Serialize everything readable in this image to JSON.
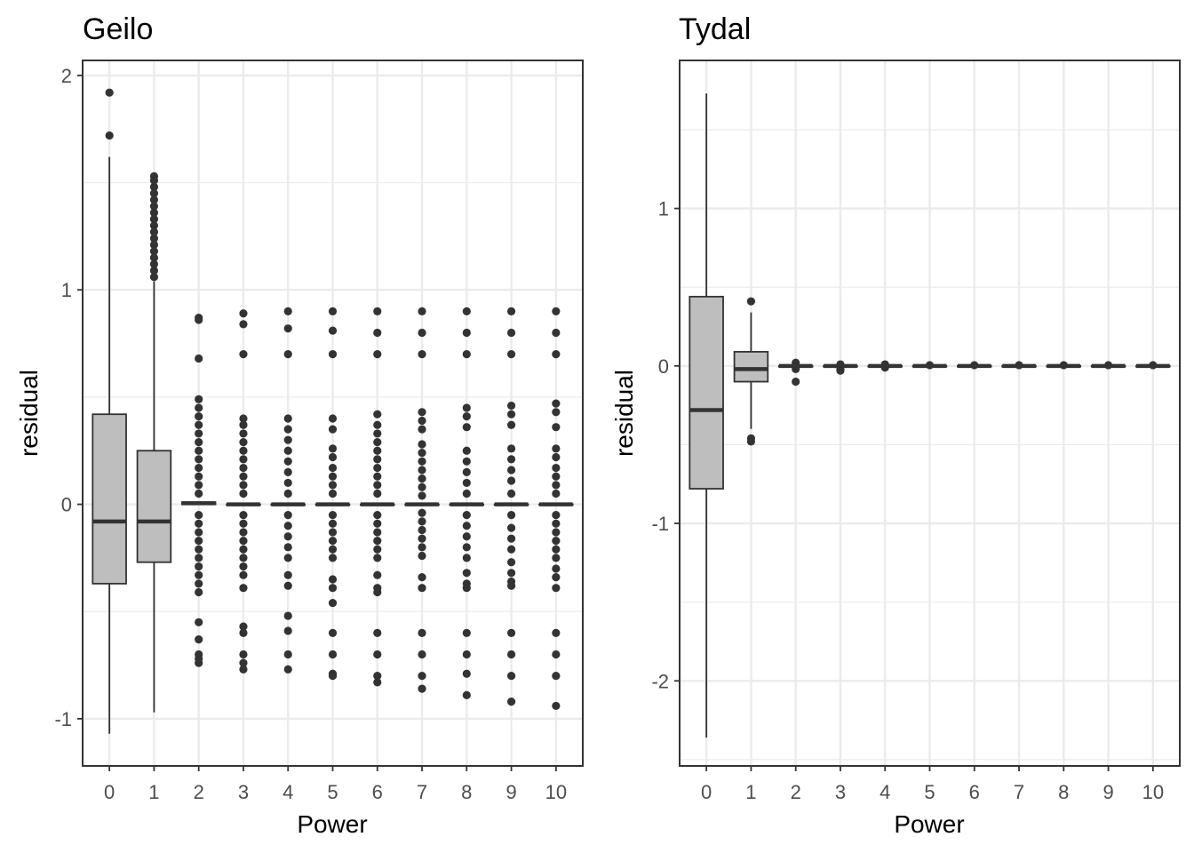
{
  "chart_data": [
    {
      "type": "boxplot",
      "title": "Geilo",
      "xlabel": "Power",
      "ylabel": "residual",
      "categories": [
        "0",
        "1",
        "2",
        "3",
        "4",
        "5",
        "6",
        "7",
        "8",
        "9",
        "10"
      ],
      "ylim": [
        -1.22,
        2.07
      ],
      "yticks": [
        -1,
        0,
        1,
        2
      ],
      "yticklabels": [
        "-1",
        "0",
        "1",
        "2"
      ],
      "grid": true,
      "boxes": [
        {
          "x": "0",
          "lower": -1.07,
          "q1": -0.37,
          "median": -0.08,
          "q3": 0.42,
          "upper": 1.62,
          "outliers": [
            1.72,
            1.92
          ]
        },
        {
          "x": "1",
          "lower": -0.97,
          "q1": -0.27,
          "median": -0.08,
          "q3": 0.25,
          "upper": 1.04,
          "outliers": [
            1.06,
            1.09,
            1.12,
            1.15,
            1.18,
            1.21,
            1.24,
            1.27,
            1.3,
            1.33,
            1.36,
            1.39,
            1.42,
            1.45,
            1.48,
            1.51,
            1.53
          ]
        },
        {
          "x": "2",
          "lower": 0,
          "q1": 0,
          "median": 0.005,
          "q3": 0.01,
          "upper": 0.01,
          "outliers": [
            0.87,
            0.86,
            0.68,
            0.49,
            0.45,
            0.41,
            0.37,
            0.33,
            0.29,
            0.25,
            0.21,
            0.17,
            0.13,
            0.09,
            0.05,
            -0.05,
            -0.09,
            -0.13,
            -0.17,
            -0.21,
            -0.25,
            -0.29,
            -0.33,
            -0.37,
            -0.41,
            -0.55,
            -0.63,
            -0.7,
            -0.72,
            -0.74
          ]
        },
        {
          "x": "3",
          "lower": 0,
          "q1": 0,
          "median": 0,
          "q3": 0,
          "upper": 0,
          "outliers": [
            0.89,
            0.84,
            0.7,
            0.4,
            0.37,
            0.33,
            0.29,
            0.25,
            0.21,
            0.17,
            0.13,
            0.09,
            0.05,
            -0.05,
            -0.09,
            -0.13,
            -0.17,
            -0.21,
            -0.25,
            -0.29,
            -0.33,
            -0.39,
            -0.57,
            -0.6,
            -0.7,
            -0.74,
            -0.77
          ]
        },
        {
          "x": "4",
          "lower": 0,
          "q1": 0,
          "median": 0,
          "q3": 0,
          "upper": 0,
          "outliers": [
            0.9,
            0.82,
            0.7,
            0.4,
            0.35,
            0.3,
            0.25,
            0.2,
            0.15,
            0.1,
            0.05,
            -0.05,
            -0.1,
            -0.15,
            -0.2,
            -0.25,
            -0.33,
            -0.38,
            -0.52,
            -0.59,
            -0.7,
            -0.77
          ]
        },
        {
          "x": "5",
          "lower": 0,
          "q1": 0,
          "median": 0,
          "q3": 0,
          "upper": 0,
          "outliers": [
            0.9,
            0.81,
            0.7,
            0.4,
            0.35,
            0.26,
            0.22,
            0.17,
            0.13,
            0.09,
            0.05,
            -0.05,
            -0.09,
            -0.13,
            -0.17,
            -0.21,
            -0.25,
            -0.35,
            -0.39,
            -0.46,
            -0.6,
            -0.7,
            -0.79,
            -0.8
          ]
        },
        {
          "x": "6",
          "lower": 0,
          "q1": 0,
          "median": 0,
          "q3": 0,
          "upper": 0,
          "outliers": [
            0.9,
            0.8,
            0.7,
            0.42,
            0.37,
            0.33,
            0.29,
            0.25,
            0.21,
            0.17,
            0.13,
            0.09,
            0.05,
            -0.05,
            -0.09,
            -0.13,
            -0.17,
            -0.21,
            -0.25,
            -0.33,
            -0.39,
            -0.41,
            -0.6,
            -0.7,
            -0.8,
            -0.83
          ]
        },
        {
          "x": "7",
          "lower": 0,
          "q1": 0,
          "median": 0,
          "q3": 0,
          "upper": 0,
          "outliers": [
            0.9,
            0.8,
            0.7,
            0.43,
            0.39,
            0.35,
            0.28,
            0.24,
            0.2,
            0.16,
            0.12,
            0.08,
            0.04,
            -0.04,
            -0.08,
            -0.12,
            -0.16,
            -0.2,
            -0.24,
            -0.34,
            -0.39,
            -0.6,
            -0.7,
            -0.8,
            -0.86
          ]
        },
        {
          "x": "8",
          "lower": 0,
          "q1": 0,
          "median": 0,
          "q3": 0,
          "upper": 0,
          "outliers": [
            0.9,
            0.8,
            0.7,
            0.45,
            0.41,
            0.36,
            0.25,
            0.2,
            0.15,
            0.1,
            0.05,
            -0.05,
            -0.1,
            -0.15,
            -0.2,
            -0.25,
            -0.32,
            -0.37,
            -0.39,
            -0.6,
            -0.7,
            -0.79,
            -0.89
          ]
        },
        {
          "x": "9",
          "lower": 0,
          "q1": 0,
          "median": 0,
          "q3": 0,
          "upper": 0,
          "outliers": [
            0.9,
            0.8,
            0.7,
            0.46,
            0.42,
            0.37,
            0.26,
            0.21,
            0.16,
            0.11,
            0.05,
            -0.05,
            -0.11,
            -0.16,
            -0.21,
            -0.27,
            -0.32,
            -0.36,
            -0.38,
            -0.6,
            -0.7,
            -0.8,
            -0.92
          ]
        },
        {
          "x": "10",
          "lower": 0,
          "q1": 0,
          "median": 0,
          "q3": 0,
          "upper": 0,
          "outliers": [
            0.9,
            0.8,
            0.7,
            0.47,
            0.43,
            0.36,
            0.26,
            0.22,
            0.17,
            0.13,
            0.09,
            0.05,
            -0.05,
            -0.09,
            -0.13,
            -0.17,
            -0.21,
            -0.25,
            -0.3,
            -0.34,
            -0.39,
            -0.6,
            -0.7,
            -0.8,
            -0.94
          ]
        }
      ]
    },
    {
      "type": "boxplot",
      "title": "Tydal",
      "xlabel": "Power",
      "ylabel": "residual",
      "categories": [
        "0",
        "1",
        "2",
        "3",
        "4",
        "5",
        "6",
        "7",
        "8",
        "9",
        "10"
      ],
      "ylim": [
        -2.54,
        1.94
      ],
      "yticks": [
        -2,
        -1,
        0,
        1
      ],
      "yticklabels": [
        "-2",
        "-1",
        "0",
        "1"
      ],
      "grid": true,
      "boxes": [
        {
          "x": "0",
          "lower": -2.36,
          "q1": -0.78,
          "median": -0.28,
          "q3": 0.44,
          "upper": 1.73,
          "outliers": []
        },
        {
          "x": "1",
          "lower": -0.4,
          "q1": -0.1,
          "median": -0.02,
          "q3": 0.09,
          "upper": 0.34,
          "outliers": [
            0.41,
            -0.46,
            -0.48
          ]
        },
        {
          "x": "2",
          "lower": 0,
          "q1": 0,
          "median": 0,
          "q3": 0,
          "upper": 0,
          "outliers": [
            0.02,
            -0.02,
            -0.1
          ]
        },
        {
          "x": "3",
          "lower": 0,
          "q1": 0,
          "median": 0,
          "q3": 0,
          "upper": 0,
          "outliers": [
            0.01,
            -0.02,
            -0.03
          ]
        },
        {
          "x": "4",
          "lower": 0,
          "q1": 0,
          "median": 0,
          "q3": 0,
          "upper": 0,
          "outliers": [
            0.01,
            -0.01
          ]
        },
        {
          "x": "5",
          "lower": 0,
          "q1": 0,
          "median": 0,
          "q3": 0,
          "upper": 0,
          "outliers": [
            0.005
          ]
        },
        {
          "x": "6",
          "lower": 0,
          "q1": 0,
          "median": 0,
          "q3": 0,
          "upper": 0,
          "outliers": [
            0.005
          ]
        },
        {
          "x": "7",
          "lower": 0,
          "q1": 0,
          "median": 0,
          "q3": 0,
          "upper": 0,
          "outliers": [
            0.005
          ]
        },
        {
          "x": "8",
          "lower": 0,
          "q1": 0,
          "median": 0,
          "q3": 0,
          "upper": 0,
          "outliers": [
            0.005
          ]
        },
        {
          "x": "9",
          "lower": 0,
          "q1": 0,
          "median": 0,
          "q3": 0,
          "upper": 0,
          "outliers": [
            0.005
          ]
        },
        {
          "x": "10",
          "lower": 0,
          "q1": 0,
          "median": 0,
          "q3": 0,
          "upper": 0,
          "outliers": [
            0.005
          ]
        }
      ]
    }
  ],
  "colors": {
    "box_fill": "#bebebe",
    "box_stroke": "#333333",
    "outlier": "#333333",
    "grid": "#ebebeb",
    "panel_border": "#333333",
    "tick_label": "#4d4d4d"
  }
}
